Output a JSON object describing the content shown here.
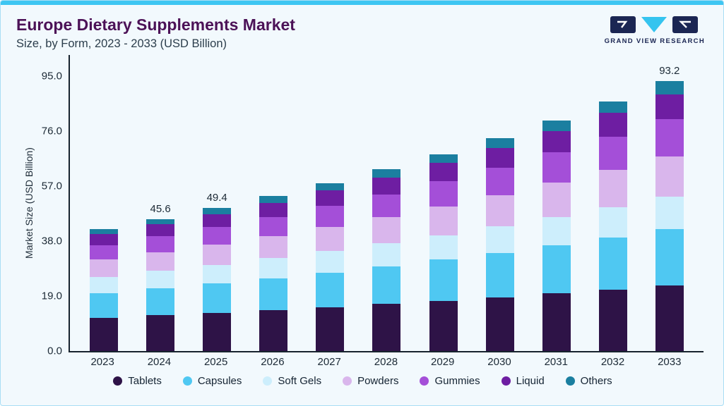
{
  "header": {
    "title": "Europe Dietary Supplements Market",
    "subtitle": "Size, by Form, 2023 - 2033 (USD Billion)"
  },
  "brand": {
    "name": "GRAND VIEW RESEARCH"
  },
  "colors": {
    "accent_cyan": "#3ec6f2",
    "title_purple": "#4c1257",
    "logo_navy": "#1b2653",
    "axis_dark": "#17232e"
  },
  "chart_data": {
    "type": "bar",
    "subtype": "stacked-vertical",
    "title": "Europe Dietary Supplements Market",
    "subtitle": "Size, by Form, 2023 - 2033 (USD Billion)",
    "xlabel": "",
    "ylabel": "Market Size (USD Billion)",
    "ymax": 95,
    "yticks": [
      "0.0",
      "19.0",
      "38.0",
      "57.0",
      "76.0",
      "95.0"
    ],
    "grid": false,
    "legend_position": "bottom",
    "series": [
      {
        "name": "Tablets",
        "color": "#2e1347"
      },
      {
        "name": "Capsules",
        "color": "#4fc8f2"
      },
      {
        "name": "Soft Gels",
        "color": "#cdeefc"
      },
      {
        "name": "Powders",
        "color": "#d9b6ec"
      },
      {
        "name": "Gummies",
        "color": "#a44fd8"
      },
      {
        "name": "Liquid",
        "color": "#6e1ea2"
      },
      {
        "name": "Others",
        "color": "#1b7fa0"
      }
    ],
    "categories": [
      "2023",
      "2024",
      "2025",
      "2026",
      "2027",
      "2028",
      "2029",
      "2030",
      "2031",
      "2032",
      "2033"
    ],
    "bars": [
      {
        "category": "2023",
        "values": [
          11.5,
          8.5,
          5.5,
          6.0,
          5.0,
          3.8,
          1.8
        ],
        "total": 42.1,
        "label": null
      },
      {
        "category": "2024",
        "values": [
          12.3,
          9.3,
          6.0,
          6.5,
          5.5,
          4.1,
          1.9
        ],
        "total": 45.6,
        "label": "45.6"
      },
      {
        "category": "2025",
        "values": [
          13.2,
          10.1,
          6.4,
          7.1,
          6.0,
          4.5,
          2.1
        ],
        "total": 49.4,
        "label": "49.4"
      },
      {
        "category": "2026",
        "values": [
          14.1,
          11.0,
          6.9,
          7.7,
          6.6,
          4.9,
          2.3
        ],
        "total": 53.5,
        "label": null
      },
      {
        "category": "2027",
        "values": [
          15.1,
          12.0,
          7.4,
          8.4,
          7.2,
          5.3,
          2.5
        ],
        "total": 57.9,
        "label": null
      },
      {
        "category": "2028",
        "values": [
          16.2,
          13.0,
          7.9,
          9.1,
          7.9,
          5.8,
          2.8
        ],
        "total": 62.7,
        "label": null
      },
      {
        "category": "2029",
        "values": [
          17.3,
          14.2,
          8.5,
          9.9,
          8.7,
          6.3,
          3.0
        ],
        "total": 67.9,
        "label": null
      },
      {
        "category": "2030",
        "values": [
          18.5,
          15.4,
          9.1,
          10.8,
          9.5,
          6.9,
          3.4
        ],
        "total": 73.6,
        "label": null
      },
      {
        "category": "2031",
        "values": [
          19.8,
          16.7,
          9.8,
          11.8,
          10.5,
          7.4,
          3.7
        ],
        "total": 79.7,
        "label": null
      },
      {
        "category": "2032",
        "values": [
          21.1,
          18.1,
          10.5,
          12.8,
          11.6,
          8.1,
          4.1
        ],
        "total": 86.3,
        "label": null
      },
      {
        "category": "2033",
        "values": [
          22.5,
          19.6,
          11.2,
          13.9,
          12.9,
          8.5,
          4.6
        ],
        "total": 93.2,
        "label": "93.2"
      }
    ]
  }
}
